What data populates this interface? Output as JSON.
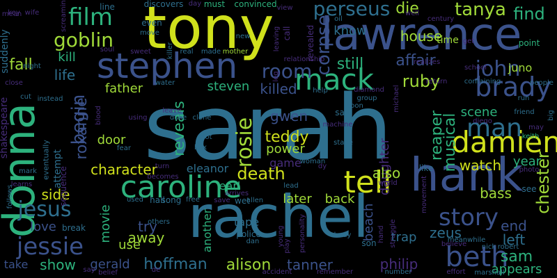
{
  "words": [
    {
      "text": "sarah",
      "color": "#2e6f8e"
    },
    {
      "text": "rachel",
      "color": "#2e6f8e"
    },
    {
      "text": "tony",
      "color": "#d0e11c"
    },
    {
      "text": "lawrence",
      "color": "#3b528b"
    },
    {
      "text": "hank",
      "color": "#3b528b"
    },
    {
      "text": "donna",
      "color": "#2db27d"
    },
    {
      "text": "stephen",
      "color": "#3b528b"
    },
    {
      "text": "caroline",
      "color": "#2db27d"
    },
    {
      "text": "mack",
      "color": "#2db27d"
    },
    {
      "text": "tell",
      "color": "#d0e11c"
    },
    {
      "text": "damien",
      "color": "#d0e11c"
    },
    {
      "text": "brady",
      "color": "#3b528b"
    },
    {
      "text": "man",
      "color": "#2e6f8e"
    },
    {
      "text": "john",
      "color": "#3b528b"
    },
    {
      "text": "story",
      "color": "#3b528b"
    },
    {
      "text": "beth",
      "color": "#3b528b"
    },
    {
      "text": "jessie",
      "color": "#3b528b"
    },
    {
      "text": "jesus",
      "color": "#2e6f8e"
    },
    {
      "text": "film",
      "color": "#2db27d"
    },
    {
      "text": "goblin",
      "color": "#a0da39"
    },
    {
      "text": "begin",
      "color": "#3b528b"
    },
    {
      "text": "rosie",
      "color": "#a0da39"
    },
    {
      "text": "room",
      "color": "#3b528b"
    },
    {
      "text": "perseus",
      "color": "#2e6f8e"
    },
    {
      "text": "tanya",
      "color": "#a0da39"
    },
    {
      "text": "find",
      "color": "#2db27d"
    },
    {
      "text": "die",
      "color": "#a0da39"
    },
    {
      "text": "house",
      "color": "#a0da39"
    },
    {
      "text": "corpse",
      "color": "#3b528b"
    },
    {
      "text": "know",
      "color": "#2e6f8e"
    },
    {
      "text": "still",
      "color": "#2db27d"
    },
    {
      "text": "affair",
      "color": "#3b528b"
    },
    {
      "text": "ruby",
      "color": "#a0da39"
    },
    {
      "text": "juno",
      "color": "#a0da39"
    },
    {
      "text": "killed",
      "color": "#3b528b"
    },
    {
      "text": "steven",
      "color": "#2db27d"
    },
    {
      "text": "father",
      "color": "#a0da39"
    },
    {
      "text": "roxanne",
      "color": "#3b528b"
    },
    {
      "text": "life",
      "color": "#2e6f8e"
    },
    {
      "text": "kill",
      "color": "#2db27d"
    },
    {
      "text": "fall",
      "color": "#a0da39"
    },
    {
      "text": "reveals",
      "color": "#2db27d"
    },
    {
      "text": "gwen",
      "color": "#3b528b"
    },
    {
      "text": "teddy",
      "color": "#d0e11c"
    },
    {
      "text": "reaper",
      "color": "#2db27d"
    },
    {
      "text": "daughter",
      "color": "#472d7b"
    },
    {
      "text": "power",
      "color": "#a0da39"
    },
    {
      "text": "game",
      "color": "#472d7b"
    },
    {
      "text": "musical",
      "color": "#2db27d"
    },
    {
      "text": "scene",
      "color": "#2db27d"
    },
    {
      "text": "watch",
      "color": "#d0e11c"
    },
    {
      "text": "chester",
      "color": "#a0da39"
    },
    {
      "text": "character",
      "color": "#d0e11c"
    },
    {
      "text": "door",
      "color": "#a0da39"
    },
    {
      "text": "death",
      "color": "#d0e11c"
    },
    {
      "text": "also",
      "color": "#a0da39"
    },
    {
      "text": "eleanor",
      "color": "#2e6f8e"
    },
    {
      "text": "earl",
      "color": "#2db27d"
    },
    {
      "text": "later",
      "color": "#a0da39"
    },
    {
      "text": "back",
      "color": "#a0da39"
    },
    {
      "text": "beach",
      "color": "#3b528b"
    },
    {
      "text": "bass",
      "color": "#a0da39"
    },
    {
      "text": "end",
      "color": "#3b528b"
    },
    {
      "text": "zeus",
      "color": "#2e6f8e"
    },
    {
      "text": "left",
      "color": "#2e6f8e"
    },
    {
      "text": "sam",
      "color": "#2db27d"
    },
    {
      "text": "appears",
      "color": "#2db27d"
    },
    {
      "text": "year",
      "color": "#2db27d"
    },
    {
      "text": "side",
      "color": "#d0e11c"
    },
    {
      "text": "love",
      "color": "#3b528b"
    },
    {
      "text": "movie",
      "color": "#2db27d"
    },
    {
      "text": "try",
      "color": "#3b528b"
    },
    {
      "text": "away",
      "color": "#a0da39"
    },
    {
      "text": "use",
      "color": "#a0da39"
    },
    {
      "text": "another",
      "color": "#2db27d"
    },
    {
      "text": "tape",
      "color": "#2e6f8e"
    },
    {
      "text": "alison",
      "color": "#a0da39"
    },
    {
      "text": "hoffman",
      "color": "#2e6f8e"
    },
    {
      "text": "gerald",
      "color": "#3b528b"
    },
    {
      "text": "tanner",
      "color": "#3b528b"
    },
    {
      "text": "philip",
      "color": "#472d7b"
    },
    {
      "text": "trap",
      "color": "#2e6f8e"
    },
    {
      "text": "show",
      "color": "#2db27d"
    },
    {
      "text": "take",
      "color": "#3b528b"
    },
    {
      "text": "shakespeare",
      "color": "#472d7b"
    },
    {
      "text": "suddenly",
      "color": "#2e6f8e"
    },
    {
      "text": "night",
      "color": "#2e6f8e"
    },
    {
      "text": "close",
      "color": "#472d7b"
    },
    {
      "text": "cut",
      "color": "#2e6f8e"
    },
    {
      "text": "instead",
      "color": "#2e6f8e"
    },
    {
      "text": "attempt",
      "color": "#2e6f8e"
    },
    {
      "text": "sequence",
      "color": "#472d7b"
    },
    {
      "text": "eventually",
      "color": "#2e6f8e"
    },
    {
      "text": "mark",
      "color": "#2e6f8e"
    },
    {
      "text": "learns",
      "color": "#472d7b"
    },
    {
      "text": "follows",
      "color": "#2e6f8e"
    },
    {
      "text": "mean",
      "color": "#472d7b"
    },
    {
      "text": "key",
      "color": "#472d7b"
    },
    {
      "text": "wife",
      "color": "#472d7b"
    },
    {
      "text": "screaming",
      "color": "#472d7b"
    },
    {
      "text": "line",
      "color": "#2e6f8e"
    },
    {
      "text": "discovers",
      "color": "#2e6f8e"
    },
    {
      "text": "day",
      "color": "#472d7b"
    },
    {
      "text": "must",
      "color": "#2db27d"
    },
    {
      "text": "convinced",
      "color": "#2db27d"
    },
    {
      "text": "view",
      "color": "#472d7b"
    },
    {
      "text": "oil",
      "color": "#2e6f8e"
    },
    {
      "text": "revealed",
      "color": "#472d7b"
    },
    {
      "text": "call",
      "color": "#472d7b"
    },
    {
      "text": "leaving",
      "color": "#472d7b"
    },
    {
      "text": "well",
      "color": "#472d7b"
    },
    {
      "text": "century",
      "color": "#472d7b"
    },
    {
      "text": "even",
      "color": "#2e6f8e"
    },
    {
      "text": "move",
      "color": "#2e6f8e"
    },
    {
      "text": "new",
      "color": "#2e6f8e"
    },
    {
      "text": "leg",
      "color": "#472d7b"
    },
    {
      "text": "relationship",
      "color": "#472d7b"
    },
    {
      "text": "mother",
      "color": "#a0da39"
    },
    {
      "text": "made",
      "color": "#2e6f8e"
    },
    {
      "text": "real",
      "color": "#2e6f8e"
    },
    {
      "text": "killer",
      "color": "#2e6f8e"
    },
    {
      "text": "sweet",
      "color": "#472d7b"
    },
    {
      "text": "soul",
      "color": "#472d7b"
    },
    {
      "text": "time",
      "color": "#a0da39"
    },
    {
      "text": "get",
      "color": "#472d7b"
    },
    {
      "text": "point",
      "color": "#2db27d"
    },
    {
      "text": "realizes",
      "color": "#472d7b"
    },
    {
      "text": "school",
      "color": "#472d7b"
    },
    {
      "text": "return",
      "color": "#472d7b"
    },
    {
      "text": "containing",
      "color": "#2e6f8e"
    },
    {
      "text": "people",
      "color": "#2e6f8e"
    },
    {
      "text": "help",
      "color": "#2e6f8e"
    },
    {
      "text": "diamond",
      "color": "#472d7b"
    },
    {
      "text": "group",
      "color": "#2e6f8e"
    },
    {
      "text": "soon",
      "color": "#2e6f8e"
    },
    {
      "text": "water",
      "color": "#2e6f8e"
    },
    {
      "text": "leave",
      "color": "#472d7b"
    },
    {
      "text": "using",
      "color": "#472d7b"
    },
    {
      "text": "duke",
      "color": "#2e6f8e"
    },
    {
      "text": "clone",
      "color": "#2e6f8e"
    },
    {
      "text": "plot",
      "color": "#2e6f8e"
    },
    {
      "text": "box",
      "color": "#2e6f8e"
    },
    {
      "text": "fear",
      "color": "#2e6f8e"
    },
    {
      "text": "blood",
      "color": "#472d7b"
    },
    {
      "text": "saw",
      "color": "#2e6f8e"
    },
    {
      "text": "machine",
      "color": "#472d7b"
    },
    {
      "text": "stage",
      "color": "#2e6f8e"
    },
    {
      "text": "michael",
      "color": "#472d7b"
    },
    {
      "text": "diego",
      "color": "#472d7b"
    },
    {
      "text": "run",
      "color": "#2e6f8e"
    },
    {
      "text": "friend",
      "color": "#2e6f8e"
    },
    {
      "text": "big",
      "color": "#2e6f8e"
    },
    {
      "text": "may",
      "color": "#472d7b"
    },
    {
      "text": "keith",
      "color": "#2db27d"
    },
    {
      "text": "photo",
      "color": "#472d7b"
    },
    {
      "text": "like",
      "color": "#2e6f8e"
    },
    {
      "text": "turn",
      "color": "#472d7b"
    },
    {
      "text": "becomes",
      "color": "#472d7b"
    },
    {
      "text": "woman",
      "color": "#2e6f8e"
    },
    {
      "text": "dy",
      "color": "#472d7b"
    },
    {
      "text": "world",
      "color": "#472d7b"
    },
    {
      "text": "movement",
      "color": "#472d7b"
    },
    {
      "text": "see",
      "color": "#2e6f8e"
    },
    {
      "text": "lead",
      "color": "#2e6f8e"
    },
    {
      "text": "used",
      "color": "#2e6f8e"
    },
    {
      "text": "hall",
      "color": "#2e6f8e"
    },
    {
      "text": "song",
      "color": "#2e6f8e"
    },
    {
      "text": "free",
      "color": "#2e6f8e"
    },
    {
      "text": "save",
      "color": "#472d7b"
    },
    {
      "text": "arrives",
      "color": "#472d7b"
    },
    {
      "text": "wet",
      "color": "#2e6f8e"
    },
    {
      "text": "allen",
      "color": "#2e6f8e"
    },
    {
      "text": "break",
      "color": "#2e6f8e"
    },
    {
      "text": "others",
      "color": "#2e6f8e"
    },
    {
      "text": "police",
      "color": "#2e6f8e"
    },
    {
      "text": "dan",
      "color": "#2e6f8e"
    },
    {
      "text": "young",
      "color": "#472d7b"
    },
    {
      "text": "play",
      "color": "#472d7b"
    },
    {
      "text": "personality",
      "color": "#472d7b"
    },
    {
      "text": "body",
      "color": "#2e6f8e"
    },
    {
      "text": "son",
      "color": "#2e6f8e"
    },
    {
      "text": "hand",
      "color": "#472d7b"
    },
    {
      "text": "struggle",
      "color": "#472d7b"
    },
    {
      "text": "meanwhile",
      "color": "#2e6f8e"
    },
    {
      "text": "believe",
      "color": "#472d7b"
    },
    {
      "text": "nick",
      "color": "#2e6f8e"
    },
    {
      "text": "robert",
      "color": "#2e6f8e"
    },
    {
      "text": "say",
      "color": "#472d7b"
    },
    {
      "text": "belief",
      "color": "#472d7b"
    },
    {
      "text": "de",
      "color": "#472d7b"
    },
    {
      "text": "accident",
      "color": "#472d7b"
    },
    {
      "text": "remember",
      "color": "#472d7b"
    },
    {
      "text": "number",
      "color": "#2e6f8e"
    },
    {
      "text": "effort",
      "color": "#472d7b"
    },
    {
      "text": "marshall",
      "color": "#2e6f8e"
    }
  ]
}
